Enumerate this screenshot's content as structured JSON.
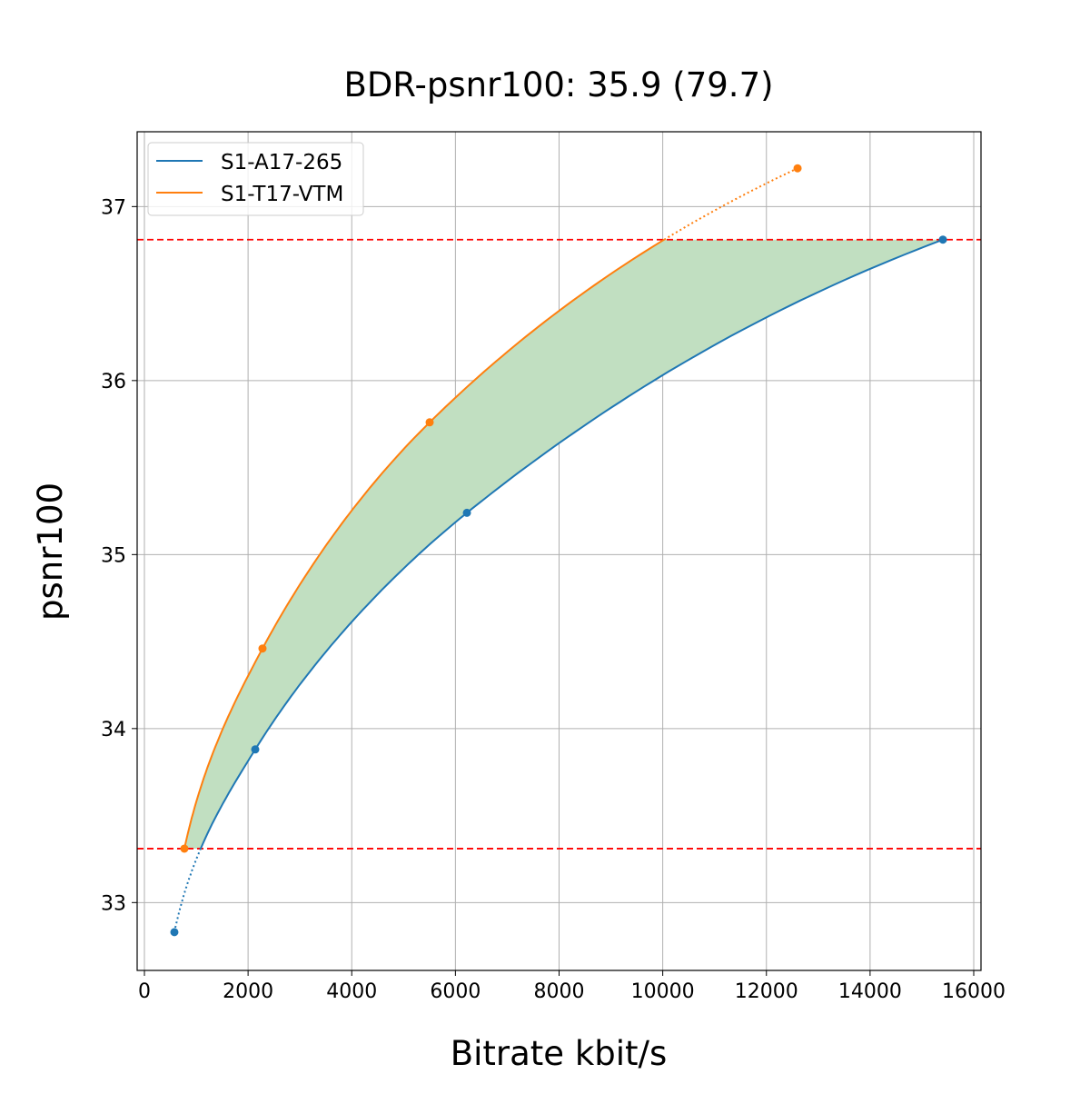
{
  "chart_data": {
    "type": "line",
    "title": "BDR-psnr100: 35.9 (79.7)",
    "xlabel": "Bitrate kbit/s",
    "ylabel": "psnr100",
    "xlim": [
      -140,
      16140
    ],
    "ylim": [
      32.61,
      37.43
    ],
    "xticks": [
      0,
      2000,
      4000,
      6000,
      8000,
      10000,
      12000,
      14000,
      16000
    ],
    "yticks": [
      33,
      34,
      35,
      36,
      37
    ],
    "grid": true,
    "legend_position": "upper-left",
    "series": [
      {
        "name": "S1-A17-265",
        "color": "#1f77b4",
        "x": [
          578,
          2138,
          6222,
          15405
        ],
        "y": [
          32.83,
          33.88,
          35.24,
          36.81
        ]
      },
      {
        "name": "S1-T17-VTM",
        "color": "#ff7f0e",
        "x": [
          771,
          2278,
          5503,
          12601
        ],
        "y": [
          33.31,
          34.46,
          35.76,
          37.22
        ]
      }
    ],
    "reference_lines": {
      "y": [
        33.31,
        36.81
      ],
      "color": "#ff0000",
      "style": "dashed"
    },
    "fill_between": {
      "color": "#c1dfc1"
    }
  }
}
